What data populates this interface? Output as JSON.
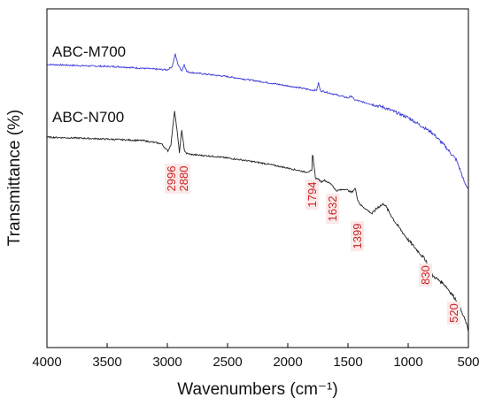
{
  "chart_data": {
    "type": "line",
    "xlabel": "Wavenumbers (cm⁻¹)",
    "ylabel": "Transmittance (%)",
    "xlim": [
      4000,
      500
    ],
    "x_reversed": true,
    "xticks": [
      4000,
      3500,
      3000,
      2500,
      2000,
      1500,
      1000,
      500
    ],
    "y_ticks_shown": false,
    "ylim": [
      0,
      100
    ],
    "grid": false,
    "colors": {
      "ABC-M700": "#3a3ad6",
      "ABC-N700": "#222222",
      "peak_labels": "#cc2222",
      "peak_label_bg": "#fbe9e9"
    },
    "series": [
      {
        "name": "ABC-M700",
        "x": [
          4000,
          3700,
          3400,
          3100,
          3000,
          2960,
          2935,
          2910,
          2880,
          2860,
          2840,
          2800,
          2500,
          2200,
          1900,
          1800,
          1760,
          1745,
          1730,
          1700,
          1500,
          1470,
          1450,
          1400,
          1200,
          1000,
          800,
          700,
          600,
          560,
          530,
          500
        ],
        "y": [
          83.6,
          83.2,
          82.9,
          82.2,
          82.0,
          83.0,
          86.6,
          83.4,
          81.7,
          83.6,
          81.5,
          81.2,
          80.0,
          78.4,
          76.7,
          76.0,
          76.0,
          78.2,
          75.9,
          75.6,
          73.7,
          74.3,
          73.2,
          72.7,
          70.9,
          67.9,
          63.4,
          59.7,
          55.4,
          51.6,
          48.4,
          47.0
        ]
      },
      {
        "name": "ABC-N700",
        "x": [
          4000,
          3700,
          3400,
          3200,
          3050,
          2996,
          2970,
          2940,
          2920,
          2900,
          2880,
          2860,
          2840,
          2800,
          2600,
          2400,
          2200,
          2000,
          1850,
          1800,
          1794,
          1770,
          1750,
          1720,
          1700,
          1632,
          1600,
          1520,
          1470,
          1440,
          1420,
          1399,
          1300,
          1250,
          1200,
          1150,
          1100,
          1000,
          900,
          850,
          830,
          800,
          700,
          600,
          520,
          500
        ],
        "y": [
          62.1,
          61.8,
          61.4,
          61.1,
          60.2,
          58.0,
          60.0,
          70.0,
          64.2,
          57.6,
          64.2,
          58.4,
          57.3,
          57.0,
          56.4,
          55.5,
          54.4,
          53.0,
          51.8,
          52.2,
          57.6,
          50.0,
          49.8,
          48.9,
          49.5,
          48.1,
          46.3,
          46.8,
          45.8,
          47.0,
          43.7,
          42.2,
          39.5,
          41.5,
          42.5,
          39.5,
          36.6,
          31.8,
          27.7,
          25.6,
          22.1,
          21.3,
          18.7,
          14.0,
          7.5,
          4.8
        ]
      }
    ],
    "series_labels": [
      "ABC-M700",
      "ABC-N700"
    ],
    "annotations": [
      "2996",
      "2880",
      "1794",
      "1632",
      "1399",
      "830",
      "520"
    ]
  }
}
